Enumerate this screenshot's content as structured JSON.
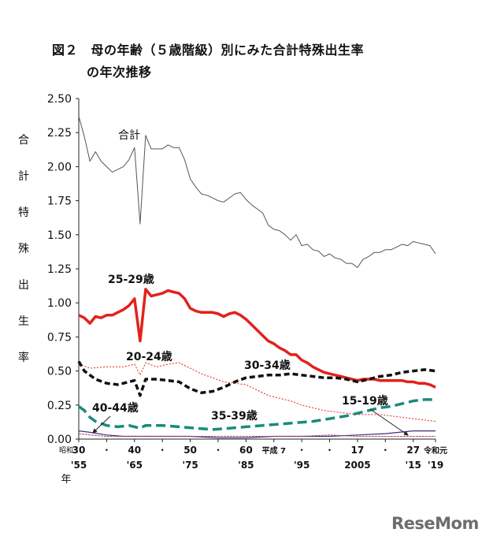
{
  "title_line1": "図２　母の年齢（５歳階級）別にみた合計特殊出生率",
  "title_line2": "の年次推移",
  "watermark": "ReseMom",
  "chart_data": {
    "type": "line",
    "ylabel": "合計特殊出生率",
    "ylim": [
      0,
      2.5
    ],
    "yticks": [
      "0.00",
      "0.25",
      "0.50",
      "0.75",
      "1.00",
      "1.25",
      "1.50",
      "1.75",
      "2.00",
      "2.25",
      "2.50"
    ],
    "xlim": [
      1955,
      2019
    ],
    "xticks_top": [
      {
        "x": 1955,
        "label": "30"
      },
      {
        "x": 1960,
        "label": "・"
      },
      {
        "x": 1965,
        "label": "40"
      },
      {
        "x": 1970,
        "label": "・"
      },
      {
        "x": 1975,
        "label": "50"
      },
      {
        "x": 1980,
        "label": "・"
      },
      {
        "x": 1985,
        "label": "60"
      },
      {
        "x": 1990,
        "label": "平成 7"
      },
      {
        "x": 1995,
        "label": "・"
      },
      {
        "x": 2000,
        "label": "・"
      },
      {
        "x": 2005,
        "label": "17"
      },
      {
        "x": 2010,
        "label": "・"
      },
      {
        "x": 2015,
        "label": "27"
      },
      {
        "x": 2019,
        "label": "令和元"
      }
    ],
    "xticks_bottom": [
      {
        "x": 1955,
        "label": "'55"
      },
      {
        "x": 1965,
        "label": "'65"
      },
      {
        "x": 1975,
        "label": "'75"
      },
      {
        "x": 1985,
        "label": "'85"
      },
      {
        "x": 1995,
        "label": "'95"
      },
      {
        "x": 2005,
        "label": "2005"
      },
      {
        "x": 2015,
        "label": "'15"
      },
      {
        "x": 2019,
        "label": "'19"
      }
    ],
    "era_label": "昭和",
    "year_label": "年",
    "series": [
      {
        "name": "合計",
        "color": "#555555",
        "style": "thin",
        "points": [
          [
            1955,
            2.37
          ],
          [
            1956,
            2.22
          ],
          [
            1957,
            2.04
          ],
          [
            1958,
            2.11
          ],
          [
            1959,
            2.04
          ],
          [
            1960,
            2.0
          ],
          [
            1961,
            1.96
          ],
          [
            1962,
            1.98
          ],
          [
            1963,
            2.0
          ],
          [
            1964,
            2.05
          ],
          [
            1965,
            2.14
          ],
          [
            1966,
            1.58
          ],
          [
            1967,
            2.23
          ],
          [
            1968,
            2.13
          ],
          [
            1969,
            2.13
          ],
          [
            1970,
            2.13
          ],
          [
            1971,
            2.16
          ],
          [
            1972,
            2.14
          ],
          [
            1973,
            2.14
          ],
          [
            1974,
            2.05
          ],
          [
            1975,
            1.91
          ],
          [
            1976,
            1.85
          ],
          [
            1977,
            1.8
          ],
          [
            1978,
            1.79
          ],
          [
            1979,
            1.77
          ],
          [
            1980,
            1.75
          ],
          [
            1981,
            1.74
          ],
          [
            1982,
            1.77
          ],
          [
            1983,
            1.8
          ],
          [
            1984,
            1.81
          ],
          [
            1985,
            1.76
          ],
          [
            1986,
            1.72
          ],
          [
            1987,
            1.69
          ],
          [
            1988,
            1.66
          ],
          [
            1989,
            1.57
          ],
          [
            1990,
            1.54
          ],
          [
            1991,
            1.53
          ],
          [
            1992,
            1.5
          ],
          [
            1993,
            1.46
          ],
          [
            1994,
            1.5
          ],
          [
            1995,
            1.42
          ],
          [
            1996,
            1.43
          ],
          [
            1997,
            1.39
          ],
          [
            1998,
            1.38
          ],
          [
            1999,
            1.34
          ],
          [
            2000,
            1.36
          ],
          [
            2001,
            1.33
          ],
          [
            2002,
            1.32
          ],
          [
            2003,
            1.29
          ],
          [
            2004,
            1.29
          ],
          [
            2005,
            1.26
          ],
          [
            2006,
            1.32
          ],
          [
            2007,
            1.34
          ],
          [
            2008,
            1.37
          ],
          [
            2009,
            1.37
          ],
          [
            2010,
            1.39
          ],
          [
            2011,
            1.39
          ],
          [
            2012,
            1.41
          ],
          [
            2013,
            1.43
          ],
          [
            2014,
            1.42
          ],
          [
            2015,
            1.45
          ],
          [
            2016,
            1.44
          ],
          [
            2017,
            1.43
          ],
          [
            2018,
            1.42
          ],
          [
            2019,
            1.36
          ]
        ]
      },
      {
        "name": "25-29歳",
        "color": "#e3211c",
        "style": "thick",
        "points": [
          [
            1955,
            0.91
          ],
          [
            1956,
            0.89
          ],
          [
            1957,
            0.85
          ],
          [
            1958,
            0.9
          ],
          [
            1959,
            0.89
          ],
          [
            1960,
            0.91
          ],
          [
            1961,
            0.91
          ],
          [
            1962,
            0.93
          ],
          [
            1963,
            0.95
          ],
          [
            1964,
            0.98
          ],
          [
            1965,
            1.03
          ],
          [
            1966,
            0.72
          ],
          [
            1967,
            1.1
          ],
          [
            1968,
            1.05
          ],
          [
            1969,
            1.06
          ],
          [
            1970,
            1.07
          ],
          [
            1971,
            1.09
          ],
          [
            1972,
            1.08
          ],
          [
            1973,
            1.07
          ],
          [
            1974,
            1.03
          ],
          [
            1975,
            0.96
          ],
          [
            1976,
            0.94
          ],
          [
            1977,
            0.93
          ],
          [
            1978,
            0.93
          ],
          [
            1979,
            0.93
          ],
          [
            1980,
            0.92
          ],
          [
            1981,
            0.9
          ],
          [
            1982,
            0.92
          ],
          [
            1983,
            0.93
          ],
          [
            1984,
            0.91
          ],
          [
            1985,
            0.88
          ],
          [
            1986,
            0.84
          ],
          [
            1987,
            0.8
          ],
          [
            1988,
            0.76
          ],
          [
            1989,
            0.72
          ],
          [
            1990,
            0.7
          ],
          [
            1991,
            0.67
          ],
          [
            1992,
            0.65
          ],
          [
            1993,
            0.62
          ],
          [
            1994,
            0.62
          ],
          [
            1995,
            0.58
          ],
          [
            1996,
            0.56
          ],
          [
            1997,
            0.53
          ],
          [
            1998,
            0.51
          ],
          [
            1999,
            0.49
          ],
          [
            2000,
            0.48
          ],
          [
            2001,
            0.47
          ],
          [
            2002,
            0.46
          ],
          [
            2003,
            0.45
          ],
          [
            2004,
            0.44
          ],
          [
            2005,
            0.43
          ],
          [
            2006,
            0.44
          ],
          [
            2007,
            0.44
          ],
          [
            2008,
            0.44
          ],
          [
            2009,
            0.43
          ],
          [
            2010,
            0.43
          ],
          [
            2011,
            0.43
          ],
          [
            2012,
            0.43
          ],
          [
            2013,
            0.43
          ],
          [
            2014,
            0.42
          ],
          [
            2015,
            0.42
          ],
          [
            2016,
            0.41
          ],
          [
            2017,
            0.41
          ],
          [
            2018,
            0.4
          ],
          [
            2019,
            0.38
          ]
        ]
      },
      {
        "name": "20-24歳",
        "color": "#e3211c",
        "style": "dotted",
        "points": [
          [
            1955,
            0.55
          ],
          [
            1957,
            0.52
          ],
          [
            1960,
            0.53
          ],
          [
            1963,
            0.53
          ],
          [
            1965,
            0.55
          ],
          [
            1966,
            0.47
          ],
          [
            1967,
            0.56
          ],
          [
            1969,
            0.53
          ],
          [
            1971,
            0.55
          ],
          [
            1973,
            0.56
          ],
          [
            1975,
            0.52
          ],
          [
            1977,
            0.48
          ],
          [
            1979,
            0.45
          ],
          [
            1981,
            0.42
          ],
          [
            1983,
            0.41
          ],
          [
            1985,
            0.4
          ],
          [
            1987,
            0.36
          ],
          [
            1989,
            0.32
          ],
          [
            1991,
            0.3
          ],
          [
            1993,
            0.28
          ],
          [
            1995,
            0.25
          ],
          [
            1997,
            0.23
          ],
          [
            1999,
            0.21
          ],
          [
            2001,
            0.2
          ],
          [
            2003,
            0.19
          ],
          [
            2005,
            0.18
          ],
          [
            2007,
            0.18
          ],
          [
            2009,
            0.18
          ],
          [
            2011,
            0.17
          ],
          [
            2013,
            0.16
          ],
          [
            2015,
            0.15
          ],
          [
            2017,
            0.14
          ],
          [
            2019,
            0.13
          ]
        ]
      },
      {
        "name": "30-34歳",
        "color": "#111111",
        "style": "dashed",
        "points": [
          [
            1955,
            0.57
          ],
          [
            1956,
            0.5
          ],
          [
            1958,
            0.44
          ],
          [
            1960,
            0.41
          ],
          [
            1962,
            0.4
          ],
          [
            1963,
            0.41
          ],
          [
            1964,
            0.42
          ],
          [
            1965,
            0.43
          ],
          [
            1966,
            0.32
          ],
          [
            1967,
            0.44
          ],
          [
            1969,
            0.44
          ],
          [
            1971,
            0.43
          ],
          [
            1973,
            0.42
          ],
          [
            1975,
            0.37
          ],
          [
            1977,
            0.34
          ],
          [
            1979,
            0.35
          ],
          [
            1981,
            0.38
          ],
          [
            1983,
            0.42
          ],
          [
            1985,
            0.45
          ],
          [
            1987,
            0.46
          ],
          [
            1989,
            0.47
          ],
          [
            1991,
            0.47
          ],
          [
            1993,
            0.48
          ],
          [
            1995,
            0.47
          ],
          [
            1997,
            0.46
          ],
          [
            1999,
            0.45
          ],
          [
            2001,
            0.45
          ],
          [
            2003,
            0.44
          ],
          [
            2005,
            0.42
          ],
          [
            2007,
            0.44
          ],
          [
            2009,
            0.46
          ],
          [
            2011,
            0.47
          ],
          [
            2013,
            0.49
          ],
          [
            2015,
            0.5
          ],
          [
            2017,
            0.51
          ],
          [
            2019,
            0.5
          ]
        ]
      },
      {
        "name": "35-39歳",
        "color": "#1a8a7d",
        "style": "dashed-teal",
        "points": [
          [
            1955,
            0.24
          ],
          [
            1956,
            0.21
          ],
          [
            1957,
            0.16
          ],
          [
            1958,
            0.13
          ],
          [
            1960,
            0.1
          ],
          [
            1962,
            0.09
          ],
          [
            1964,
            0.1
          ],
          [
            1966,
            0.08
          ],
          [
            1967,
            0.1
          ],
          [
            1970,
            0.1
          ],
          [
            1973,
            0.09
          ],
          [
            1976,
            0.08
          ],
          [
            1979,
            0.07
          ],
          [
            1982,
            0.08
          ],
          [
            1985,
            0.09
          ],
          [
            1988,
            0.1
          ],
          [
            1991,
            0.11
          ],
          [
            1994,
            0.12
          ],
          [
            1997,
            0.13
          ],
          [
            2000,
            0.15
          ],
          [
            2003,
            0.17
          ],
          [
            2005,
            0.19
          ],
          [
            2007,
            0.21
          ],
          [
            2009,
            0.23
          ],
          [
            2011,
            0.24
          ],
          [
            2013,
            0.26
          ],
          [
            2015,
            0.28
          ],
          [
            2017,
            0.29
          ],
          [
            2019,
            0.29
          ]
        ]
      },
      {
        "name": "40-44歳",
        "color": "#3a2f7a",
        "style": "thin-dark",
        "points": [
          [
            1955,
            0.06
          ],
          [
            1957,
            0.05
          ],
          [
            1960,
            0.03
          ],
          [
            1963,
            0.02
          ],
          [
            1966,
            0.02
          ],
          [
            1970,
            0.02
          ],
          [
            1975,
            0.02
          ],
          [
            1980,
            0.01
          ],
          [
            1985,
            0.01
          ],
          [
            1990,
            0.02
          ],
          [
            1995,
            0.02
          ],
          [
            2000,
            0.02
          ],
          [
            2005,
            0.03
          ],
          [
            2010,
            0.04
          ],
          [
            2015,
            0.06
          ],
          [
            2019,
            0.06
          ]
        ]
      },
      {
        "name": "15-19歳",
        "color": "#b73e6a",
        "style": "thin-pink",
        "points": [
          [
            1955,
            0.04
          ],
          [
            1957,
            0.03
          ],
          [
            1960,
            0.02
          ],
          [
            1965,
            0.02
          ],
          [
            1970,
            0.02
          ],
          [
            1975,
            0.02
          ],
          [
            1980,
            0.02
          ],
          [
            1985,
            0.02
          ],
          [
            1990,
            0.02
          ],
          [
            1995,
            0.02
          ],
          [
            2000,
            0.03
          ],
          [
            2005,
            0.02
          ],
          [
            2010,
            0.02
          ],
          [
            2015,
            0.02
          ],
          [
            2019,
            0.02
          ]
        ]
      }
    ],
    "annotations": [
      {
        "text": "合計",
        "series": "合計"
      },
      {
        "text": "25-29歳",
        "series": "25-29歳"
      },
      {
        "text": "20-24歳",
        "series": "20-24歳"
      },
      {
        "text": "30-34歳",
        "series": "30-34歳"
      },
      {
        "text": "15-19歳",
        "series": "15-19歳"
      },
      {
        "text": "40-44歳",
        "series": "40-44歳"
      },
      {
        "text": "35-39歳",
        "series": "35-39歳"
      }
    ]
  }
}
